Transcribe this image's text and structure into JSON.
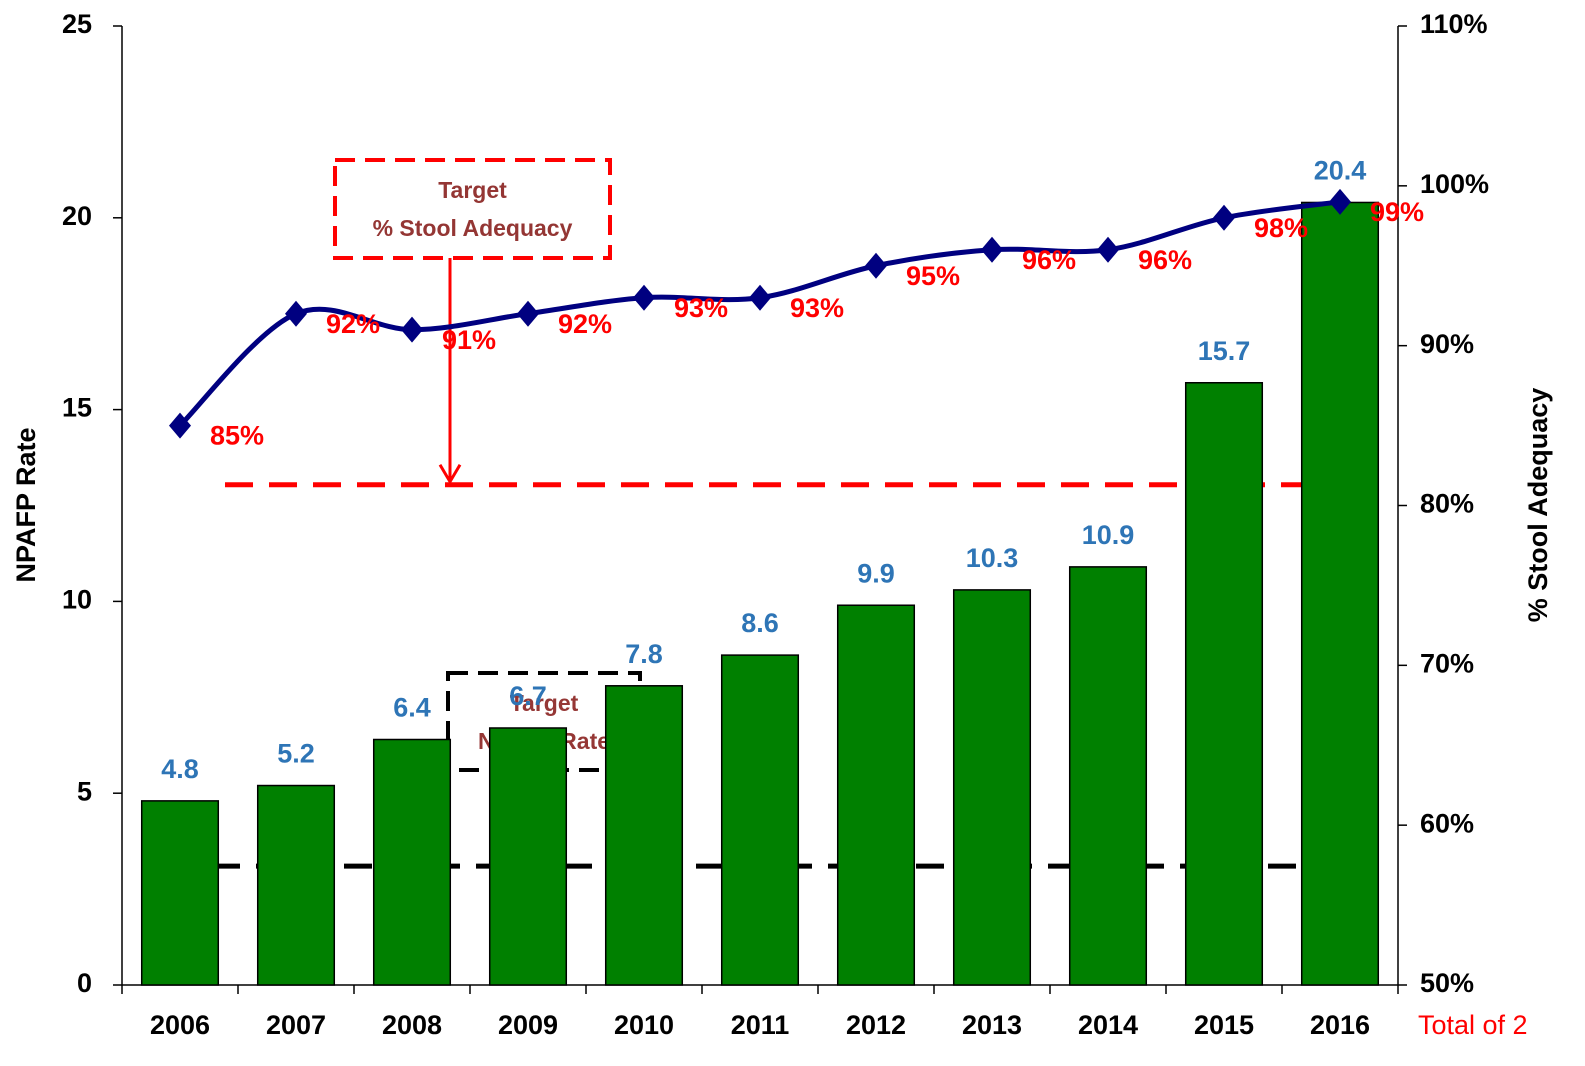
{
  "chart_data": {
    "type": "bar",
    "categories": [
      "2006",
      "2007",
      "2008",
      "2009",
      "2010",
      "2011",
      "2012",
      "2013",
      "2014",
      "2015",
      "2016"
    ],
    "series": [
      {
        "type": "bar",
        "color": "#008000",
        "axis": "y",
        "values": [
          4.8,
          5.2,
          6.4,
          6.7,
          7.8,
          8.6,
          9.9,
          10.3,
          10.9,
          15.7,
          20.4
        ]
      },
      {
        "type": "line",
        "color": "#000080",
        "label_color": "#ff0000",
        "axis": "y2",
        "values": [
          85,
          92,
          91,
          92,
          93,
          93,
          95,
          96,
          96,
          98,
          99
        ],
        "value_labels": [
          "85%",
          "92%",
          "91%",
          "92%",
          "93%",
          "93%",
          "95%",
          "96%",
          "96%",
          "98%",
          "99%"
        ]
      }
    ],
    "ylabel": "NPAFP Rate",
    "y2label": "% Stool Adequacy",
    "ylim": [
      0,
      25
    ],
    "yticks": [
      0,
      5,
      10,
      15,
      20,
      25
    ],
    "y2lim": [
      50,
      110
    ],
    "y2ticks": [
      {
        "value": 50,
        "label": "50%"
      },
      {
        "value": 60,
        "label": "60%"
      },
      {
        "value": 70,
        "label": "70%"
      },
      {
        "value": 80,
        "label": "80%"
      },
      {
        "value": 90,
        "label": "90%"
      },
      {
        "value": 100,
        "label": "100%"
      },
      {
        "value": 110,
        "label": "110%"
      }
    ],
    "annotations": [
      {
        "lines": [
          "Target",
          "% Stool Adequacy"
        ],
        "target": 81.3,
        "axis": "y2",
        "color": "#ff0000",
        "text_color": "#943634"
      },
      {
        "lines": [
          "Target",
          "NPAFP Rate"
        ],
        "target": 3.1,
        "axis": "y",
        "color": "#000000",
        "text_color": "#953735"
      }
    ],
    "footnote": "Total of 2",
    "footnote_color": "#ff0000"
  }
}
